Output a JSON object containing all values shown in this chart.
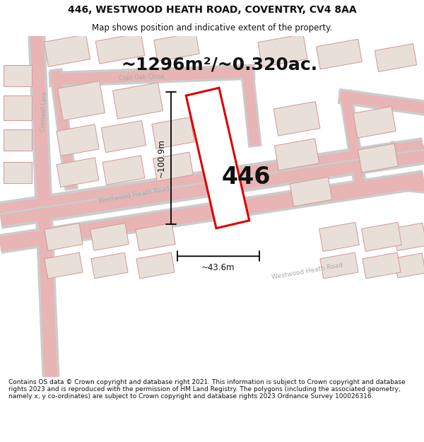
{
  "title_line1": "446, WESTWOOD HEATH ROAD, COVENTRY, CV4 8AA",
  "title_line2": "Map shows position and indicative extent of the property.",
  "area_label": "~1296m²/~0.320ac.",
  "number_label": "446",
  "dim_height": "~100.9m",
  "dim_width": "~43.6m",
  "footer": "Contains OS data © Crown copyright and database right 2021. This information is subject to Crown copyright and database rights 2023 and is reproduced with the permission of HM Land Registry. The polygons (including the associated geometry, namely x, y co-ordinates) are subject to Crown copyright and database rights 2023 Ordnance Survey 100026316.",
  "bg_color": "#ffffff",
  "map_bg": "#f2ede8",
  "road_color": "#e8b4b4",
  "building_fill": "#e8e0d8",
  "building_stroke": "#d4a0a0",
  "highlight_color": "#dd0000",
  "text_color": "#111111",
  "road_label_color": "#aaaaaa",
  "title_fontsize": 10,
  "subtitle_fontsize": 8.5,
  "area_fontsize": 18,
  "number_fontsize": 24,
  "dim_fontsize": 8.5,
  "footer_fontsize": 6.5
}
